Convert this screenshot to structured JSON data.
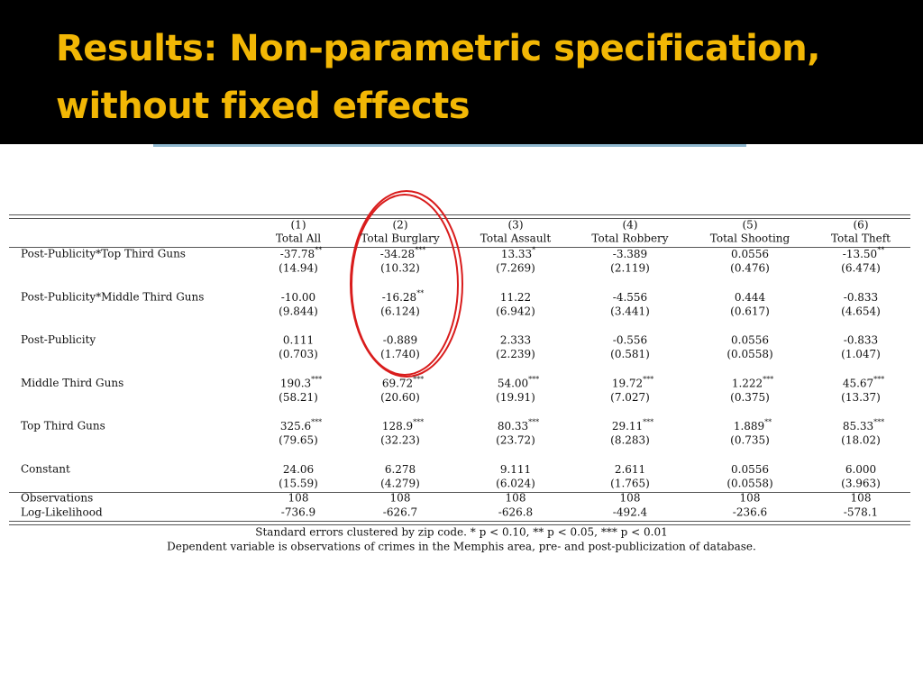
{
  "header": {
    "title": "Results: Non-parametric specification, without fixed effects"
  },
  "table": {
    "columns": [
      {
        "number": "(1)",
        "name": "Total All"
      },
      {
        "number": "(2)",
        "name": "Total Burglary"
      },
      {
        "number": "(3)",
        "name": "Total Assault"
      },
      {
        "number": "(4)",
        "name": "Total Robbery"
      },
      {
        "number": "(5)",
        "name": "Total Shooting"
      },
      {
        "number": "(6)",
        "name": "Total Theft"
      }
    ],
    "rows": [
      {
        "label": "Post-Publicity*Top Third Guns",
        "coefficients": [
          {
            "value": "-37.78",
            "stars": "**"
          },
          {
            "value": "-34.28",
            "stars": "***"
          },
          {
            "value": "13.33",
            "stars": "*"
          },
          {
            "value": "-3.389"
          },
          {
            "value": "0.0556"
          },
          {
            "value": "-13.50",
            "stars": "**"
          }
        ],
        "errors": [
          "(14.94)",
          "(10.32)",
          "(7.269)",
          "(2.119)",
          "(0.476)",
          "(6.474)"
        ]
      },
      {
        "label": "Post-Publicity*Middle Third Guns",
        "coefficients": [
          {
            "value": "-10.00"
          },
          {
            "value": "-16.28",
            "stars": "**"
          },
          {
            "value": "11.22"
          },
          {
            "value": "-4.556"
          },
          {
            "value": "0.444"
          },
          {
            "value": "-0.833"
          }
        ],
        "errors": [
          "(9.844)",
          "(6.124)",
          "(6.942)",
          "(3.441)",
          "(0.617)",
          "(4.654)"
        ]
      },
      {
        "label": "Post-Publicity",
        "coefficients": [
          {
            "value": "0.111"
          },
          {
            "value": "-0.889"
          },
          {
            "value": "2.333"
          },
          {
            "value": "-0.556"
          },
          {
            "value": "0.0556"
          },
          {
            "value": "-0.833"
          }
        ],
        "errors": [
          "(0.703)",
          "(1.740)",
          "(2.239)",
          "(0.581)",
          "(0.0558)",
          "(1.047)"
        ]
      },
      {
        "label": "Middle Third Guns",
        "coefficients": [
          {
            "value": "190.3",
            "stars": "***"
          },
          {
            "value": "69.72",
            "stars": "***"
          },
          {
            "value": "54.00",
            "stars": "***"
          },
          {
            "value": "19.72",
            "stars": "***"
          },
          {
            "value": "1.222",
            "stars": "***"
          },
          {
            "value": "45.67",
            "stars": "***"
          }
        ],
        "errors": [
          "(58.21)",
          "(20.60)",
          "(19.91)",
          "(7.027)",
          "(0.375)",
          "(13.37)"
        ]
      },
      {
        "label": "Top Third Guns",
        "coefficients": [
          {
            "value": "325.6",
            "stars": "***"
          },
          {
            "value": "128.9",
            "stars": "***"
          },
          {
            "value": "80.33",
            "stars": "***"
          },
          {
            "value": "29.11",
            "stars": "***"
          },
          {
            "value": "1.889",
            "stars": "**"
          },
          {
            "value": "85.33",
            "stars": "***"
          }
        ],
        "errors": [
          "(79.65)",
          "(32.23)",
          "(23.72)",
          "(8.283)",
          "(0.735)",
          "(18.02)"
        ]
      },
      {
        "label": "Constant",
        "coefficients": [
          {
            "value": "24.06"
          },
          {
            "value": "6.278"
          },
          {
            "value": "9.111"
          },
          {
            "value": "2.611"
          },
          {
            "value": "0.0556"
          },
          {
            "value": "6.000"
          }
        ],
        "errors": [
          "(15.59)",
          "(4.279)",
          "(6.024)",
          "(1.765)",
          "(0.0558)",
          "(3.963)"
        ]
      }
    ],
    "statistics": [
      {
        "label": "Observations",
        "values": [
          "108",
          "108",
          "108",
          "108",
          "108",
          "108"
        ]
      },
      {
        "label": "Log-Likelihood",
        "values": [
          "-736.9",
          "-626.7",
          "-626.8",
          "-492.4",
          "-236.6",
          "-578.1"
        ]
      }
    ],
    "notes": [
      "Standard errors clustered by zip code. * p < 0.10, ** p < 0.05, *** p < 0.01",
      "Dependent variable is observations of crimes in the Memphis area, pre- and post-publicization of database."
    ]
  }
}
